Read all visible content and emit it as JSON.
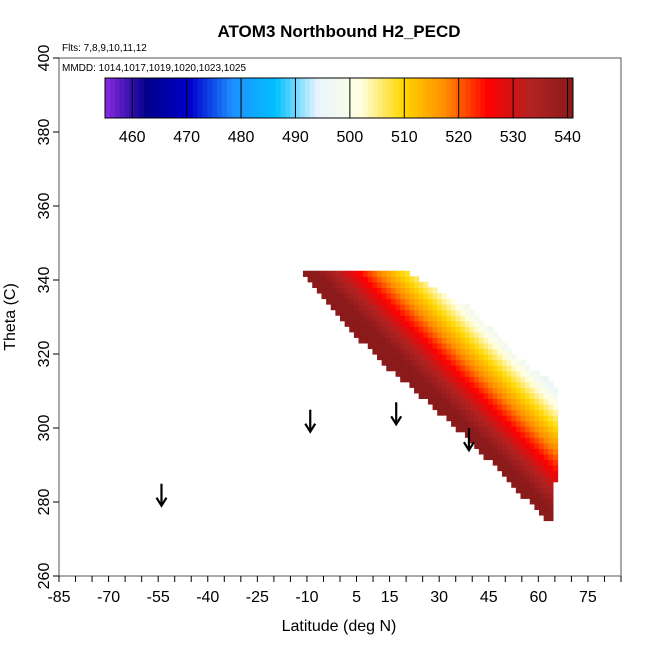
{
  "chart_data": {
    "type": "heatmap",
    "title": "ATOM3 Northbound H2_PECD",
    "annotations": {
      "flights": "Flts: 7,8,9,10,11,12",
      "dates": "MMDD: 1014,1017,1019,1020,1023,1025"
    },
    "xlabel": "Latitude (deg N)",
    "ylabel": "Theta (C)",
    "xlim": [
      -85,
      85
    ],
    "ylim": [
      260,
      400
    ],
    "x_ticks": [
      -85,
      -70,
      -55,
      -40,
      -25,
      -10,
      5,
      15,
      30,
      45,
      60,
      75
    ],
    "x_tick_labels": [
      "-85",
      "-70",
      "-55",
      "-40",
      "-25",
      "-10",
      "5",
      "15",
      "30",
      "45",
      "60",
      "75"
    ],
    "x_minor_step": 5,
    "y_ticks": [
      260,
      280,
      300,
      320,
      340,
      360,
      380,
      400
    ],
    "y_tick_labels": [
      "260",
      "280",
      "300",
      "320",
      "340",
      "360",
      "380",
      "400"
    ],
    "grid": false,
    "colorbar": {
      "placement": "top",
      "min": 455,
      "max": 541,
      "ticks": [
        460,
        470,
        480,
        490,
        500,
        510,
        520,
        530,
        540
      ],
      "tick_labels": [
        "460",
        "470",
        "480",
        "490",
        "500",
        "510",
        "520",
        "530",
        "540"
      ],
      "colors": [
        "#8a2be2",
        "#00008b",
        "#0000cd",
        "#1e90ff",
        "#00bfff",
        "#e8f4ff",
        "#ffffe0",
        "#ffd700",
        "#ff8c00",
        "#ff0000",
        "#b22222",
        "#8b1a1a"
      ]
    },
    "region": {
      "upper_edge": [
        [
          -12,
          343
        ],
        [
          5,
          343
        ],
        [
          20,
          342
        ],
        [
          40,
          332
        ],
        [
          55,
          318
        ],
        [
          66,
          311
        ]
      ],
      "lower_edge": [
        [
          66,
          296
        ],
        [
          64,
          274
        ],
        [
          55,
          282
        ],
        [
          40,
          296
        ],
        [
          25,
          308
        ],
        [
          10,
          320
        ],
        [
          -5,
          335
        ],
        [
          -12,
          343
        ]
      ]
    },
    "value_model": {
      "reference_point": [
        8,
        332
      ],
      "reference_value": 536,
      "gradient_along_slope": -2.2,
      "slope_theta_per_lat": -0.9
    },
    "arrows": [
      {
        "lat": -54,
        "theta": 279
      },
      {
        "lat": -9,
        "theta": 299
      },
      {
        "lat": 17,
        "theta": 301
      },
      {
        "lat": 39,
        "theta": 294
      }
    ]
  }
}
